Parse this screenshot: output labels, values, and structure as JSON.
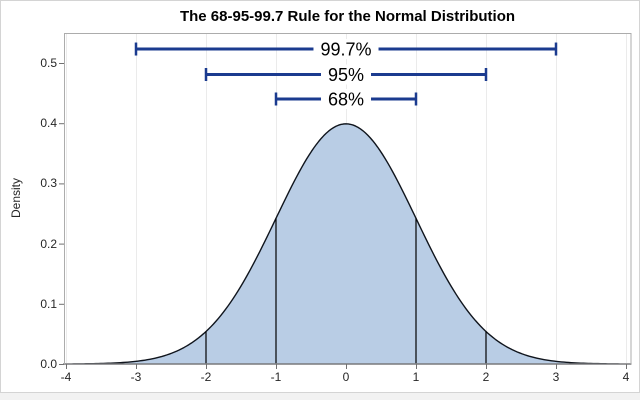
{
  "figure": {
    "title": "The 68-95-99.7 Rule for the Normal Distribution",
    "y_axis": {
      "label": "Density",
      "tick_labels": [
        "0.0",
        "0.1",
        "0.2",
        "0.3",
        "0.4",
        "0.5"
      ]
    },
    "x_axis": {
      "label": "",
      "tick_labels": [
        "-4",
        "-3",
        "-2",
        "-1",
        "0",
        "1",
        "2",
        "3",
        "4"
      ]
    }
  },
  "chart_data": {
    "type": "area",
    "title": "The 68-95-99.7 Rule for the Normal Distribution",
    "xlabel": "",
    "ylabel": "Density",
    "x_ticks": [
      -4,
      -3,
      -2,
      -1,
      0,
      1,
      2,
      3,
      4
    ],
    "y_ticks": [
      0,
      0.1,
      0.2,
      0.3,
      0.4,
      0.5
    ],
    "xlim": [
      -4.028,
      4.071
    ],
    "ylim": [
      0,
      0.55
    ],
    "grid": "vertical gridlines at every x tick, no horizontal gridlines",
    "legend": "none",
    "distribution": {
      "name": "standard normal density",
      "mean": 0,
      "sd": 1,
      "formula": "exp(-x^2/2)/sqrt(2*pi)"
    },
    "key_points": [
      {
        "x": -4,
        "density": 0.0001
      },
      {
        "x": -3,
        "density": 0.0044
      },
      {
        "x": -2,
        "density": 0.054
      },
      {
        "x": -1,
        "density": 0.242
      },
      {
        "x": 0,
        "density": 0.3989
      },
      {
        "x": 1,
        "density": 0.242
      },
      {
        "x": 2,
        "density": 0.054
      },
      {
        "x": 3,
        "density": 0.0044
      },
      {
        "x": 4,
        "density": 0.0001
      }
    ],
    "reference_lines_x": [
      -2,
      -1,
      1,
      2
    ],
    "intervals": [
      {
        "label": "99.7%",
        "x_from": -3,
        "x_to": 3,
        "y": 0.5232
      },
      {
        "label": "95%",
        "x_from": -2,
        "x_to": 2,
        "y": 0.4809
      },
      {
        "label": "68%",
        "x_from": -1,
        "x_to": 1,
        "y": 0.4402
      }
    ],
    "colors": {
      "curve_fill": "#B9CDE5",
      "curve_stroke": "#10151D",
      "bracket": "#1B3B8F",
      "reference_line": "#000000",
      "gridline": "#EBEBEB",
      "plot_border": "#ACACAC",
      "tick_mark": "#707070",
      "text": "#262626",
      "interval_label_text": "#000000",
      "figure_background": "#FFFFFF"
    }
  }
}
